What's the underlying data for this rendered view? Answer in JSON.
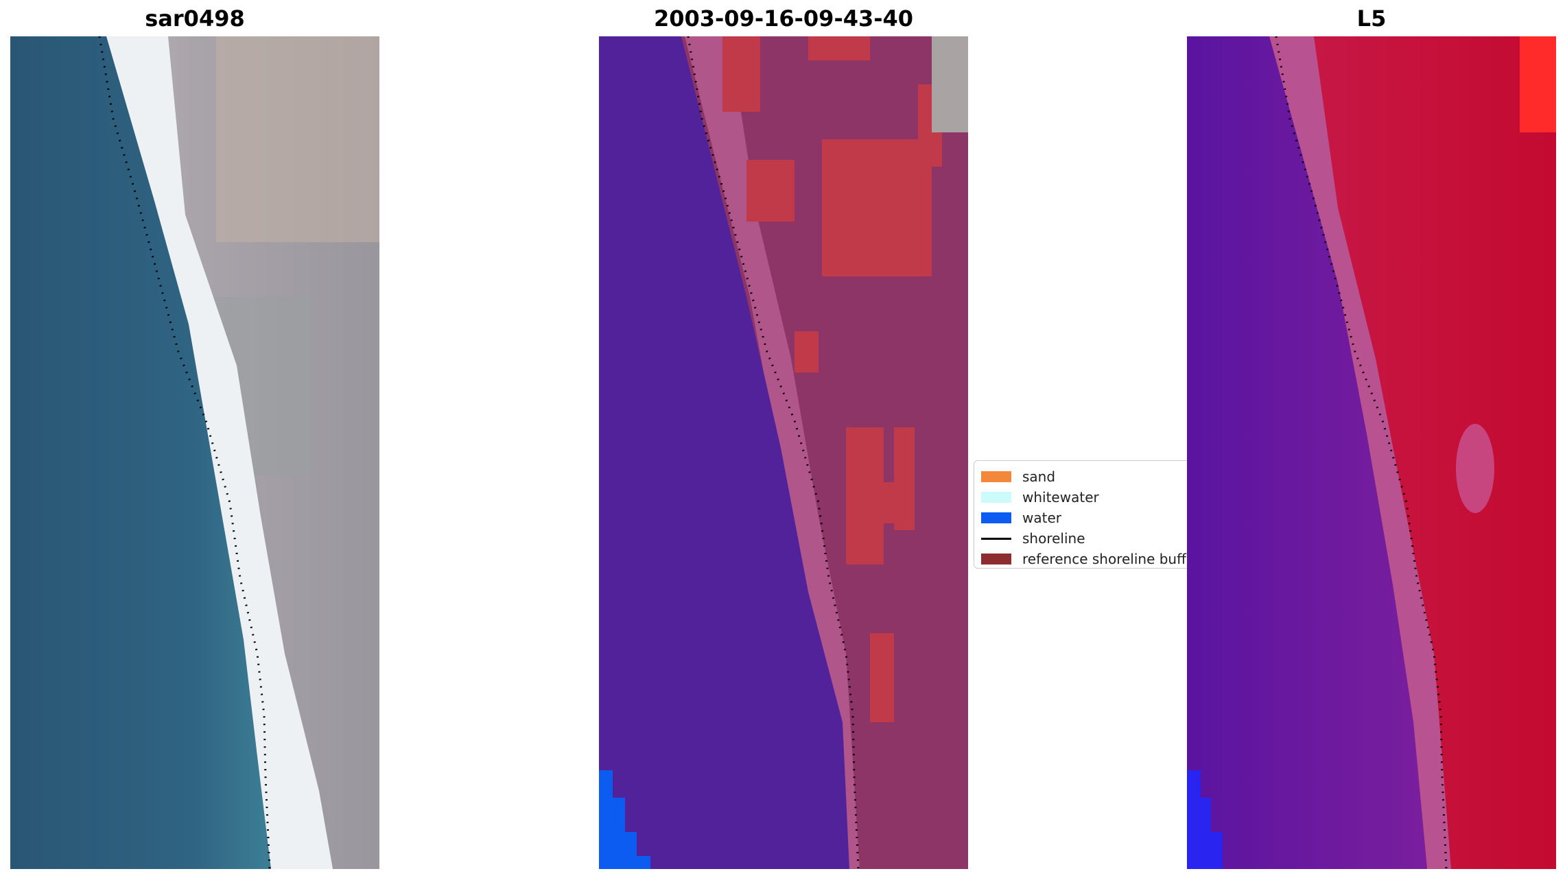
{
  "panels": {
    "left": {
      "title": "sar0498"
    },
    "middle": {
      "title": "2003-09-16-09-43-40"
    },
    "right": {
      "title": "L5"
    }
  },
  "legend": {
    "items": [
      {
        "label": "sand",
        "color": "#f4883a",
        "kind": "patch"
      },
      {
        "label": "whitewater",
        "color": "#ccfbfb",
        "kind": "patch"
      },
      {
        "label": "water",
        "color": "#0d5cf2",
        "kind": "patch"
      },
      {
        "label": "shoreline",
        "color": "#000000",
        "kind": "line"
      },
      {
        "label": "reference shoreline buffer",
        "color": "#8e2d2f",
        "kind": "patch"
      }
    ]
  },
  "colors": {
    "sea_rgb": "#2e5e7c",
    "beach_rgb": "#e9eef0",
    "land_rgb": "#a6a2a8",
    "sea_class": "#52229a",
    "land_class": "#a0507a",
    "buffer_class": "#bf3a48",
    "sea_index": "#5a17a0",
    "land_index": "#c8143c"
  }
}
